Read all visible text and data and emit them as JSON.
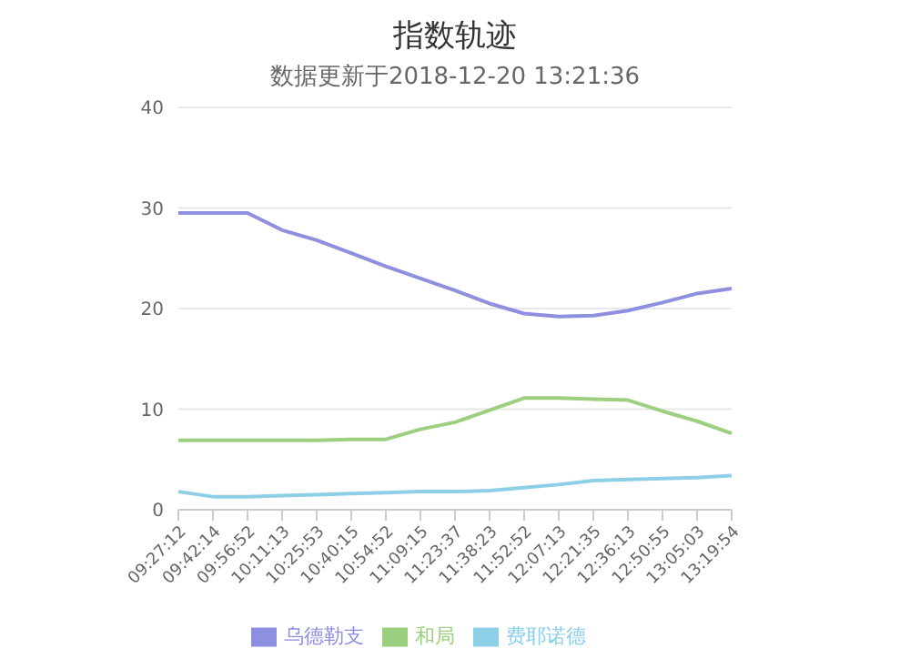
{
  "chart_data": {
    "type": "line",
    "title": "指数轨迹",
    "subtitle": "数据更新于2018-12-20 13:21:36",
    "categories": [
      "09:27:12",
      "09:42:14",
      "09:56:52",
      "10:11:13",
      "10:25:53",
      "10:40:15",
      "10:54:52",
      "11:09:15",
      "11:23:37",
      "11:38:23",
      "11:52:52",
      "12:07:13",
      "12:21:35",
      "12:36:13",
      "12:50:55",
      "13:05:03",
      "13:19:54"
    ],
    "series": [
      {
        "name": "费耶诺德",
        "color": "#8ecfe8",
        "values": [
          1.8,
          1.3,
          1.3,
          1.4,
          1.5,
          1.6,
          1.7,
          1.8,
          1.8,
          1.9,
          2.2,
          2.5,
          2.9,
          3.0,
          3.1,
          3.2,
          3.4
        ]
      },
      {
        "name": "乌德勒支",
        "color": "#8f8fe0",
        "values": [
          29.5,
          29.5,
          29.5,
          27.8,
          26.8,
          25.5,
          24.2,
          23.0,
          21.8,
          20.5,
          19.5,
          19.2,
          19.3,
          19.8,
          20.6,
          21.5,
          22.0
        ]
      },
      {
        "name": "和局",
        "color": "#9ccf7f",
        "values": [
          6.9,
          6.9,
          6.9,
          6.9,
          6.9,
          7.0,
          7.0,
          8.0,
          8.7,
          9.9,
          11.1,
          11.1,
          11.0,
          10.9,
          9.8,
          8.8,
          7.6
        ]
      }
    ],
    "ylim": [
      0,
      40
    ],
    "yticks": [
      0,
      10,
      20,
      30,
      40
    ],
    "grid": "y",
    "legend": "bottom",
    "marker": "none",
    "line_style": "solid"
  }
}
